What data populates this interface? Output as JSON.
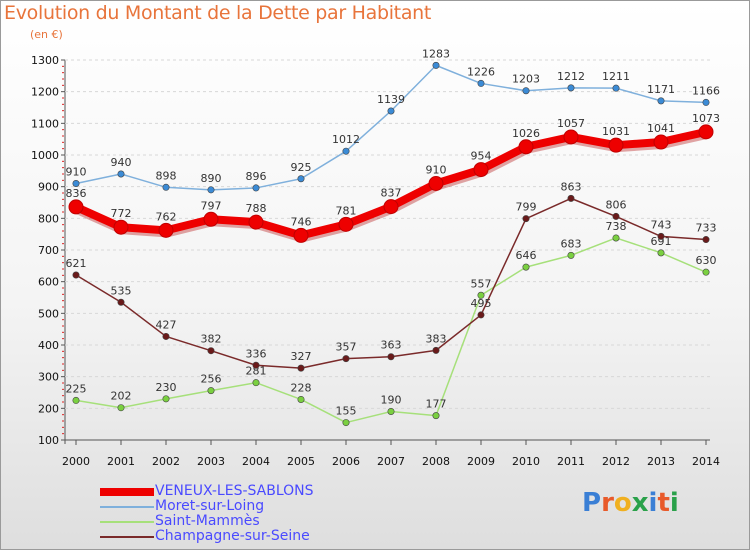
{
  "title": "Evolution du Montant de la Dette par Habitant",
  "subtitle": "(en €)",
  "logo": {
    "text": "Proxiti",
    "colors": [
      "#3a7fd5",
      "#e85a2a",
      "#f0b020",
      "#2aa14a",
      "#3a7fd5",
      "#e85a2a",
      "#2aa14a"
    ]
  },
  "chart_data": {
    "type": "line",
    "x": [
      "2000",
      "2001",
      "2002",
      "2003",
      "2004",
      "2005",
      "2006",
      "2007",
      "2008",
      "2009",
      "2010",
      "2011",
      "2012",
      "2013",
      "2014"
    ],
    "ylim": [
      100,
      1300
    ],
    "yticks": [
      "100",
      "200",
      "300",
      "400",
      "500",
      "600",
      "700",
      "800",
      "900",
      "1000",
      "1100",
      "1200",
      "1300"
    ],
    "grid": true,
    "legend_position": "bottom-left",
    "series": [
      {
        "name": "VENEUX-LES-SABLONS",
        "color": "#ee0000",
        "width": 8,
        "marker": 7,
        "values": [
          836,
          772,
          762,
          797,
          788,
          746,
          781,
          837,
          910,
          954,
          1026,
          1057,
          1031,
          1041,
          1073
        ],
        "labels": [
          "836",
          "772",
          "762",
          "797",
          "788",
          "746",
          "781",
          "837",
          "910",
          "954",
          "1026",
          "1057",
          "1031",
          "1041",
          "1073"
        ]
      },
      {
        "name": "Moret-sur-Loing",
        "color": "#7fb0dc",
        "width": 1.5,
        "marker": 3.2,
        "markerColor": "#3b8bd6",
        "values": [
          910,
          940,
          898,
          890,
          896,
          925,
          1012,
          1139,
          1283,
          1226,
          1203,
          1212,
          1211,
          1171,
          1166
        ],
        "labels": [
          "910",
          "940",
          "898",
          "890",
          "896",
          "925",
          "1012",
          "1139",
          "1283",
          "1226",
          "1203",
          "1212",
          "1211",
          "1171",
          "1166"
        ]
      },
      {
        "name": "Saint-Mammès",
        "color": "#a6e07a",
        "width": 1.5,
        "marker": 3.2,
        "markerColor": "#7ad040",
        "values": [
          225,
          202,
          230,
          256,
          281,
          228,
          155,
          190,
          177,
          557,
          646,
          683,
          738,
          691,
          630
        ],
        "labels": [
          "225",
          "202",
          "230",
          "256",
          "281",
          "228",
          "155",
          "190",
          "177",
          "557",
          "646",
          "683",
          "738",
          "691",
          "630"
        ]
      },
      {
        "name": "Champagne-sur-Seine",
        "color": "#7a2a2a",
        "width": 1.5,
        "marker": 3.2,
        "markerColor": "#6a1a1a",
        "values": [
          621,
          535,
          427,
          382,
          336,
          327,
          357,
          363,
          383,
          495,
          799,
          863,
          806,
          743,
          733
        ],
        "labels": [
          "621",
          "535",
          "427",
          "382",
          "336",
          "327",
          "357",
          "363",
          "383",
          "495",
          "799",
          "863",
          "806",
          "743",
          "733"
        ]
      }
    ]
  }
}
